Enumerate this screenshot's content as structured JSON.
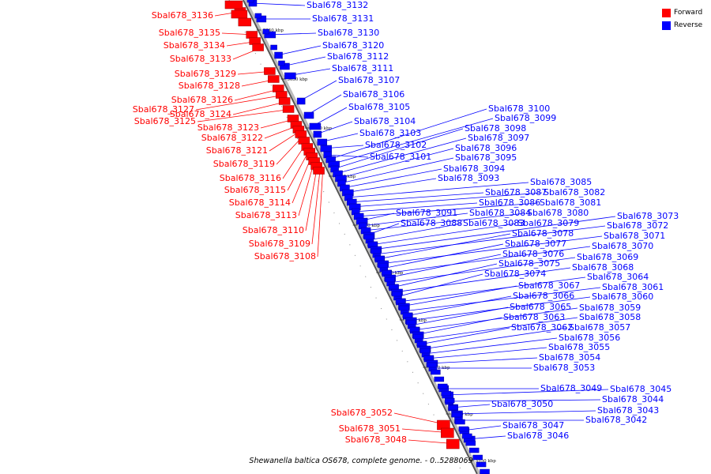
{
  "legend": {
    "forward_label": "Forward",
    "reverse_label": "Reverse",
    "forward_color": "#ff0000",
    "reverse_color": "#0000ff"
  },
  "caption": "Shewanella baltica OS678, complete genome. - 0..5288069",
  "ticks": [
    "3640 kbp",
    "3630 kbp",
    "3620 kbp",
    "3610 kbp",
    "3600 kbp",
    "3590 kbp",
    "3580 kbp",
    "3570 kbp",
    "3560 kbp",
    "3550 kbp"
  ],
  "forward_genes": [
    "Sbal678_3136",
    "Sbal678_3135",
    "Sbal678_3134",
    "Sbal678_3133",
    "Sbal678_3129",
    "Sbal678_3128",
    "Sbal678_3126",
    "Sbal678_3127",
    "Sbal678_3124",
    "Sbal678_3125",
    "Sbal678_3123",
    "Sbal678_3122",
    "Sbal678_3121",
    "Sbal678_3119",
    "Sbal678_3116",
    "Sbal678_3115",
    "Sbal678_3114",
    "Sbal678_3113",
    "Sbal678_3110",
    "Sbal678_3109",
    "Sbal678_3108",
    "Sbal678_3052",
    "Sbal678_3051",
    "Sbal678_3048"
  ],
  "reverse_genes": [
    "Sbal678_3132",
    "Sbal678_3131",
    "Sbal678_3130",
    "Sbal678_3120",
    "Sbal678_3112",
    "Sbal678_3111",
    "Sbal678_3107",
    "Sbal678_3106",
    "Sbal678_3105",
    "Sbal678_3104",
    "Sbal678_3103",
    "Sbal678_3102",
    "Sbal678_3101",
    "Sbal678_3100",
    "Sbal678_3099",
    "Sbal678_3098",
    "Sbal678_3097",
    "Sbal678_3096",
    "Sbal678_3095",
    "Sbal678_3094",
    "Sbal678_3093",
    "Sbal678_3085",
    "Sbal678_3087",
    "Sbal678_3082",
    "Sbal678_3086",
    "Sbal678_3081",
    "Sbal678_3091",
    "Sbal678_3084",
    "Sbal678_3080",
    "Sbal678_3088",
    "Sbal678_3083",
    "Sbal678_3079",
    "Sbal678_3073",
    "Sbal678_3072",
    "Sbal678_3078",
    "Sbal678_3071",
    "Sbal678_3077",
    "Sbal678_3070",
    "Sbal678_3076",
    "Sbal678_3069",
    "Sbal678_3075",
    "Sbal678_3068",
    "Sbal678_3074",
    "Sbal678_3064",
    "Sbal678_3067",
    "Sbal678_3061",
    "Sbal678_3066",
    "Sbal678_3060",
    "Sbal678_3065",
    "Sbal678_3059",
    "Sbal678_3063",
    "Sbal678_3058",
    "Sbal678_3062",
    "Sbal678_3057",
    "Sbal678_3056",
    "Sbal678_3055",
    "Sbal678_3054",
    "Sbal678_3053",
    "Sbal678_3049",
    "Sbal678_3045",
    "Sbal678_3044",
    "Sbal678_3050",
    "Sbal678_3043",
    "Sbal678_3042",
    "Sbal678_3047",
    "Sbal678_3046"
  ]
}
